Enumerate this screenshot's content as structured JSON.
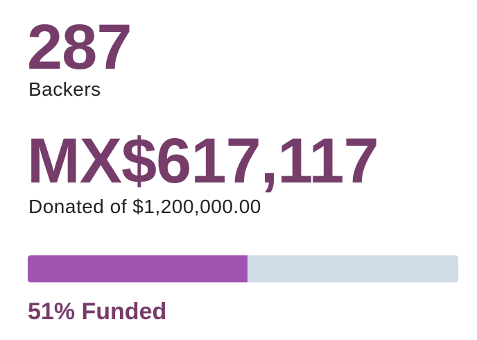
{
  "stats": {
    "backers_count": "287",
    "backers_label": "Backers",
    "amount_raised": "MX$617,117",
    "donated_label": "Donated of $1,200,000.00",
    "progress_fraction": 0.51,
    "funded_label": "51% Funded"
  },
  "colors": {
    "accent": "#763d6b",
    "progress_fill": "#a153b2",
    "progress_track": "#d0dbe5",
    "body_text": "#222222"
  }
}
